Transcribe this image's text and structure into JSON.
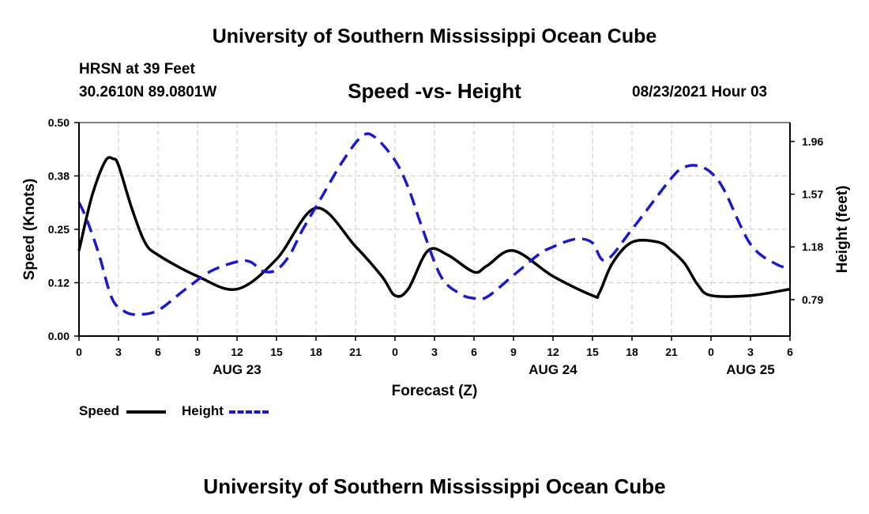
{
  "header": {
    "title": "University of Southern Mississippi Ocean Cube",
    "station": "HRSN at 39 Feet",
    "coords": "30.2610N  89.0801W",
    "subtitle": "Speed -vs- Height",
    "datetime": "08/23/2021 Hour 03"
  },
  "footer": {
    "title": "University of Southern Mississippi Ocean Cube"
  },
  "legend": {
    "items": [
      {
        "label": "Speed",
        "color": "#000000",
        "style": "solid"
      },
      {
        "label": "Height",
        "color": "#1a1acc",
        "style": "dashed"
      }
    ]
  },
  "chart_data": {
    "type": "line",
    "title": "Speed -vs- Height",
    "xlabel": "Forecast (Z)",
    "ylabel": "Speed (Knots)",
    "y2label": "Height (feet)",
    "xlim": [
      0,
      54
    ],
    "ylim": [
      0,
      0.5
    ],
    "y2lim": [
      0.52,
      2.1
    ],
    "grid": true,
    "x_ticks": [
      0,
      3,
      6,
      9,
      12,
      15,
      18,
      21,
      24,
      27,
      30,
      33,
      36,
      39,
      42,
      45,
      48,
      51,
      54
    ],
    "x_tick_labels": [
      "0",
      "3",
      "6",
      "9",
      "12",
      "15",
      "18",
      "21",
      "0",
      "3",
      "6",
      "9",
      "12",
      "15",
      "18",
      "21",
      "0",
      "3",
      "6"
    ],
    "y_ticks": [
      0.0,
      0.125,
      0.25,
      0.375,
      0.5
    ],
    "y_tick_labels": [
      "0.00",
      "0.12",
      "0.25",
      "0.38",
      "0.50"
    ],
    "y2_ticks": [
      0.79,
      1.18,
      1.57,
      1.96
    ],
    "y2_tick_labels": [
      "0.79",
      "1.18",
      "1.57",
      "1.96"
    ],
    "date_labels": [
      {
        "label": "AUG 23",
        "x": 12
      },
      {
        "label": "AUG 24",
        "x": 36
      },
      {
        "label": "AUG 25",
        "x": 51
      }
    ],
    "series": [
      {
        "name": "Speed",
        "axis": "left",
        "x": [
          0,
          1,
          2,
          2.6,
          3,
          4,
          5,
          6,
          9,
          12,
          15,
          18,
          21,
          23,
          24,
          25,
          26.5,
          28,
          30,
          31,
          33,
          36,
          39,
          39.5,
          40.5,
          42,
          44,
          45,
          46,
          47,
          48,
          51,
          54
        ],
        "y": [
          0.2,
          0.33,
          0.41,
          0.415,
          0.4,
          0.3,
          0.22,
          0.19,
          0.14,
          0.11,
          0.18,
          0.3,
          0.21,
          0.14,
          0.095,
          0.11,
          0.2,
          0.19,
          0.15,
          0.165,
          0.2,
          0.14,
          0.095,
          0.1,
          0.17,
          0.22,
          0.22,
          0.2,
          0.17,
          0.12,
          0.095,
          0.095,
          0.11
        ]
      },
      {
        "name": "Height",
        "axis": "right",
        "x": [
          0,
          0.6,
          1.5,
          2.5,
          3.5,
          4.5,
          6,
          8,
          10,
          12,
          13,
          14,
          15,
          16,
          17,
          18.5,
          20,
          21.5,
          22.5,
          24,
          25,
          26,
          27.5,
          29,
          30,
          31,
          33,
          35,
          36,
          37,
          38,
          39,
          40,
          42,
          45,
          46,
          47,
          48,
          49,
          51,
          53,
          54
        ],
        "y": [
          1.51,
          1.38,
          1.13,
          0.8,
          0.7,
          0.68,
          0.71,
          0.86,
          1.0,
          1.07,
          1.07,
          1.0,
          1.01,
          1.12,
          1.31,
          1.56,
          1.81,
          2.0,
          1.99,
          1.82,
          1.62,
          1.34,
          0.96,
          0.83,
          0.8,
          0.81,
          0.97,
          1.13,
          1.18,
          1.22,
          1.24,
          1.21,
          1.08,
          1.31,
          1.69,
          1.77,
          1.78,
          1.73,
          1.6,
          1.2,
          1.05,
          1.03
        ]
      }
    ]
  }
}
